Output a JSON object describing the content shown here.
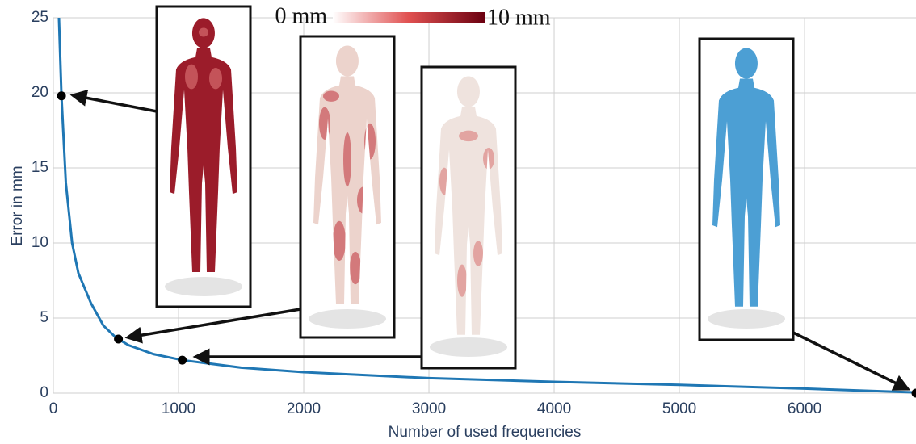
{
  "chart_data": {
    "type": "line",
    "x_label": "Number of used frequencies",
    "y_label": "Error in mm",
    "x": [
      45,
      65,
      100,
      150,
      200,
      300,
      400,
      500,
      600,
      800,
      1030,
      1500,
      2000,
      3000,
      4000,
      5000,
      6000,
      6890
    ],
    "values": [
      25,
      19.8,
      14,
      10,
      8,
      6,
      4.5,
      3.7,
      3.2,
      2.6,
      2.2,
      1.7,
      1.4,
      1.0,
      0.75,
      0.55,
      0.3,
      0.05
    ],
    "color": "#1f77b4",
    "points": {
      "x": [
        65,
        520,
        1030,
        6890
      ],
      "values": [
        19.8,
        3.6,
        2.2,
        0
      ],
      "color": "#000000"
    },
    "colorbar": {
      "min_label": "0 mm",
      "max_label": "10 mm"
    },
    "xlim": [
      0,
      6890
    ],
    "ylim": [
      0,
      25
    ],
    "xticks": [
      0,
      1000,
      2000,
      3000,
      4000,
      5000,
      6000
    ],
    "yticks": [
      0,
      5,
      10,
      15,
      20,
      25
    ],
    "grid": true
  }
}
